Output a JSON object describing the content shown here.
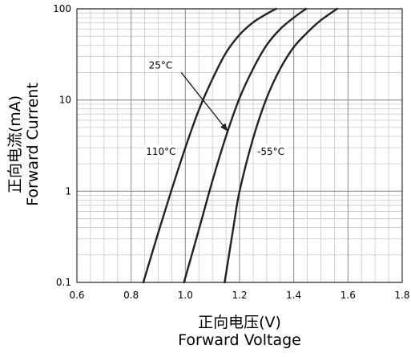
{
  "chart_data": {
    "type": "line",
    "xlabel_cn": "正向电压(V)",
    "xlabel_en": "Forward Voltage",
    "ylabel_cn": "正向电流(mA)",
    "ylabel_en": "Forward Current",
    "xlim": [
      0.6,
      1.8
    ],
    "ylim": [
      0.1,
      100
    ],
    "yscale": "log",
    "grid": true,
    "x_ticks": [
      0.6,
      0.8,
      1.0,
      1.2,
      1.4,
      1.6,
      1.8
    ],
    "x_tick_labels": [
      "0.6",
      "0.8",
      "1.0",
      "1.2",
      "1.4",
      "1.6",
      "1.8"
    ],
    "y_ticks": [
      0.1,
      1,
      10,
      100
    ],
    "y_tick_labels": [
      "0.1",
      "1",
      "10",
      "100"
    ],
    "series": [
      {
        "name": "110°C",
        "x": [
          0.845,
          0.9,
          0.95,
          1.0,
          1.05,
          1.1,
          1.15,
          1.2,
          1.25,
          1.3,
          1.335
        ],
        "y": [
          0.1,
          0.35,
          1.05,
          3.0,
          7.8,
          17.0,
          33.0,
          52.0,
          71.0,
          88.0,
          100
        ]
      },
      {
        "name": "25°C",
        "x": [
          0.995,
          1.05,
          1.1,
          1.15,
          1.2,
          1.25,
          1.3,
          1.35,
          1.4,
          1.445
        ],
        "y": [
          0.1,
          0.38,
          1.3,
          4.0,
          10.5,
          22.0,
          40.0,
          60.0,
          80.0,
          100
        ]
      },
      {
        "name": "-55°C",
        "x": [
          1.145,
          1.18,
          1.2,
          1.25,
          1.3,
          1.35,
          1.4,
          1.45,
          1.5,
          1.56
        ],
        "y": [
          0.1,
          0.45,
          1.0,
          3.8,
          10.5,
          22.0,
          38.0,
          55.0,
          75.0,
          100
        ]
      }
    ],
    "annotations": [
      {
        "text": "25°C",
        "series": "25°C"
      },
      {
        "text": "110°C",
        "series": "110°C"
      },
      {
        "text": "-55°C",
        "series": "-55°C"
      }
    ]
  }
}
